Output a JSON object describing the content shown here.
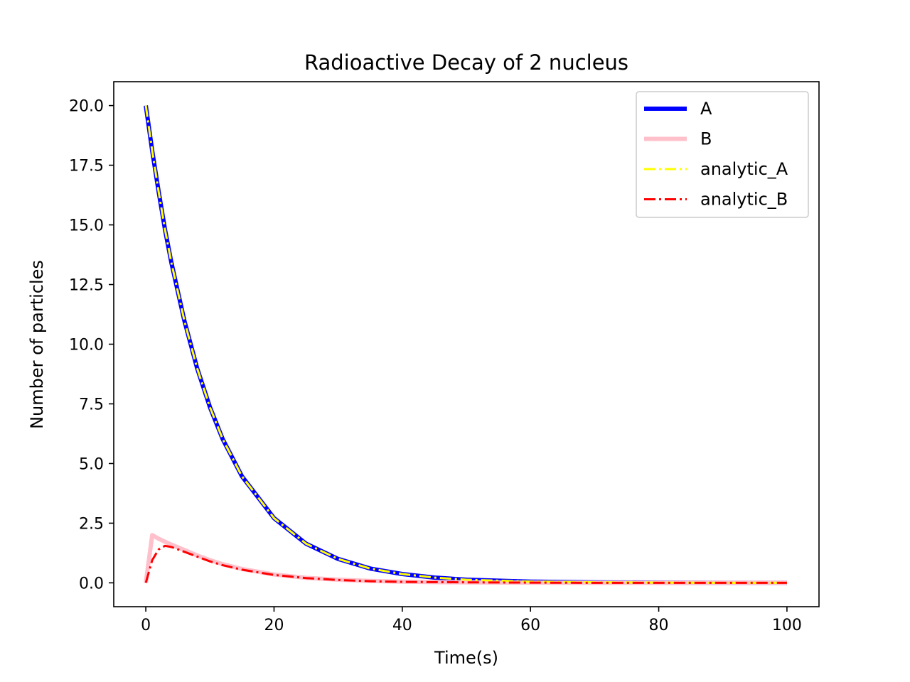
{
  "chart_data": {
    "type": "line",
    "title": "Radioactive Decay of 2 nucleus",
    "xlabel": "Time(s)",
    "ylabel": "Number of particles",
    "xlim": [
      -5,
      105
    ],
    "ylim": [
      -1,
      21
    ],
    "xticks": [
      0,
      20,
      40,
      60,
      80,
      100
    ],
    "xtick_labels": [
      "0",
      "20",
      "40",
      "60",
      "80",
      "100"
    ],
    "yticks": [
      0,
      2.5,
      5,
      7.5,
      10,
      12.5,
      15,
      17.5,
      20
    ],
    "ytick_labels": [
      "0.0",
      "2.5",
      "5.0",
      "7.5",
      "10.0",
      "12.5",
      "15.0",
      "17.5",
      "20.0"
    ],
    "grid": false,
    "legend_position": "top-right",
    "x": [
      0,
      1,
      2,
      3,
      4,
      6,
      8,
      10,
      12,
      15,
      20,
      25,
      30,
      35,
      40,
      45,
      50,
      60,
      70,
      80,
      90,
      100
    ],
    "series": [
      {
        "name": "A",
        "color": "#0000ff",
        "style": "solid",
        "values": [
          20.0,
          18.1,
          16.4,
          14.8,
          13.4,
          11.0,
          9.0,
          7.36,
          6.02,
          4.46,
          2.71,
          1.64,
          1.0,
          0.6,
          0.37,
          0.22,
          0.13,
          0.05,
          0.02,
          0.01,
          0.0,
          0.0
        ]
      },
      {
        "name": "B",
        "color": "#ffc0cb",
        "style": "solid",
        "values": [
          0.0,
          2.0,
          1.85,
          1.72,
          1.6,
          1.38,
          1.15,
          0.95,
          0.78,
          0.58,
          0.35,
          0.21,
          0.13,
          0.08,
          0.05,
          0.03,
          0.02,
          0.01,
          0.0,
          0.0,
          0.0,
          0.0
        ]
      },
      {
        "name": "analytic_A",
        "color": "#ffff00",
        "style": "dashdot",
        "values": [
          20.0,
          18.1,
          16.4,
          14.8,
          13.4,
          11.0,
          9.0,
          7.36,
          6.02,
          4.46,
          2.71,
          1.64,
          1.0,
          0.6,
          0.37,
          0.22,
          0.13,
          0.05,
          0.02,
          0.01,
          0.0,
          0.0
        ]
      },
      {
        "name": "analytic_B",
        "color": "#ff0000",
        "style": "dashdot",
        "values": [
          0.0,
          0.95,
          1.4,
          1.55,
          1.5,
          1.3,
          1.1,
          0.9,
          0.74,
          0.55,
          0.33,
          0.2,
          0.12,
          0.07,
          0.04,
          0.03,
          0.02,
          0.01,
          0.0,
          0.0,
          0.0,
          0.0
        ]
      }
    ]
  }
}
